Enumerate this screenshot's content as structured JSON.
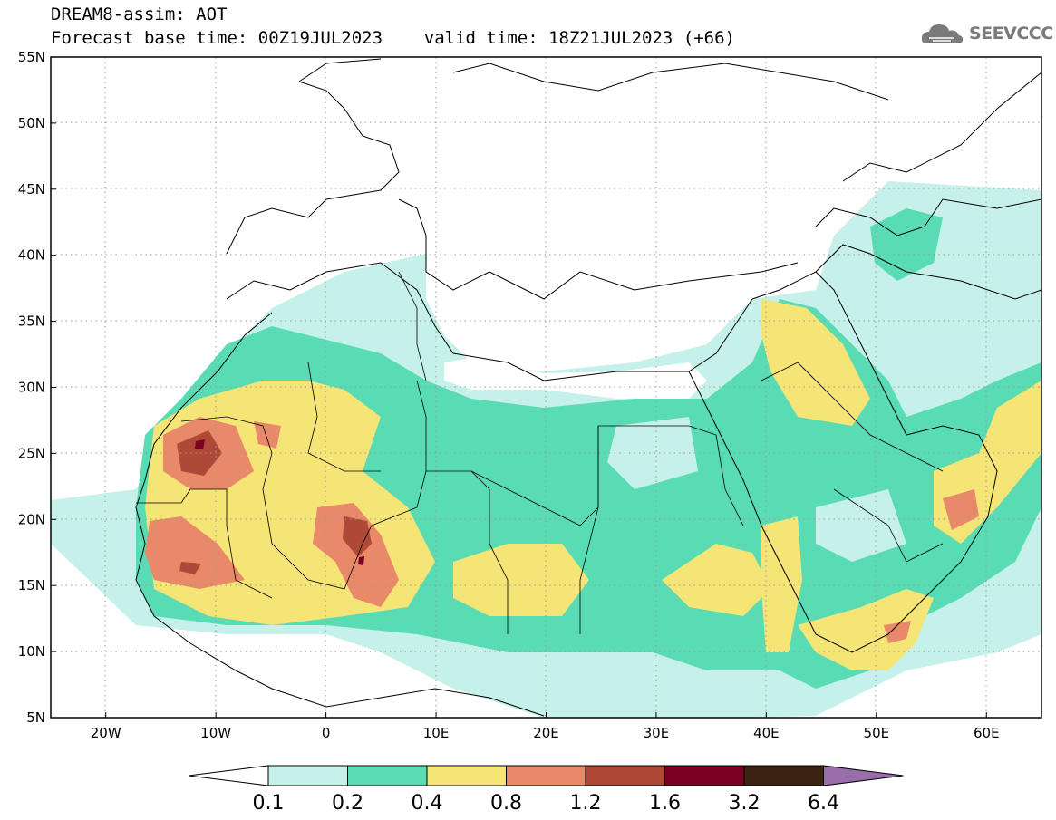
{
  "header": {
    "line1": "DREAM8-assim: AOT",
    "line2": "Forecast base time: 00Z19JUL2023    valid time: 18Z21JUL2023 (+66)"
  },
  "logo": {
    "text": "SEEVCCC",
    "icon": "cloud-icon"
  },
  "map": {
    "variable": "AOT",
    "lon_range": [
      -25,
      65
    ],
    "lat_range": [
      5,
      55
    ],
    "lat_labels": [
      "55N",
      "50N",
      "45N",
      "40N",
      "35N",
      "30N",
      "25N",
      "20N",
      "15N",
      "10N",
      "5N"
    ],
    "lon_labels": [
      "20W",
      "10W",
      "0",
      "10E",
      "20E",
      "30E",
      "40E",
      "50E",
      "60E"
    ],
    "grid": "dotted"
  },
  "colorbar": {
    "colors": [
      "#ffffff",
      "#c6f0ea",
      "#59dcb4",
      "#f5e476",
      "#e8896a",
      "#ad4936",
      "#7a0024",
      "#3b2414",
      "#9a6dab"
    ],
    "labels": [
      "0.1",
      "0.2",
      "0.4",
      "0.8",
      "1.2",
      "1.6",
      "3.2",
      "6.4"
    ]
  }
}
